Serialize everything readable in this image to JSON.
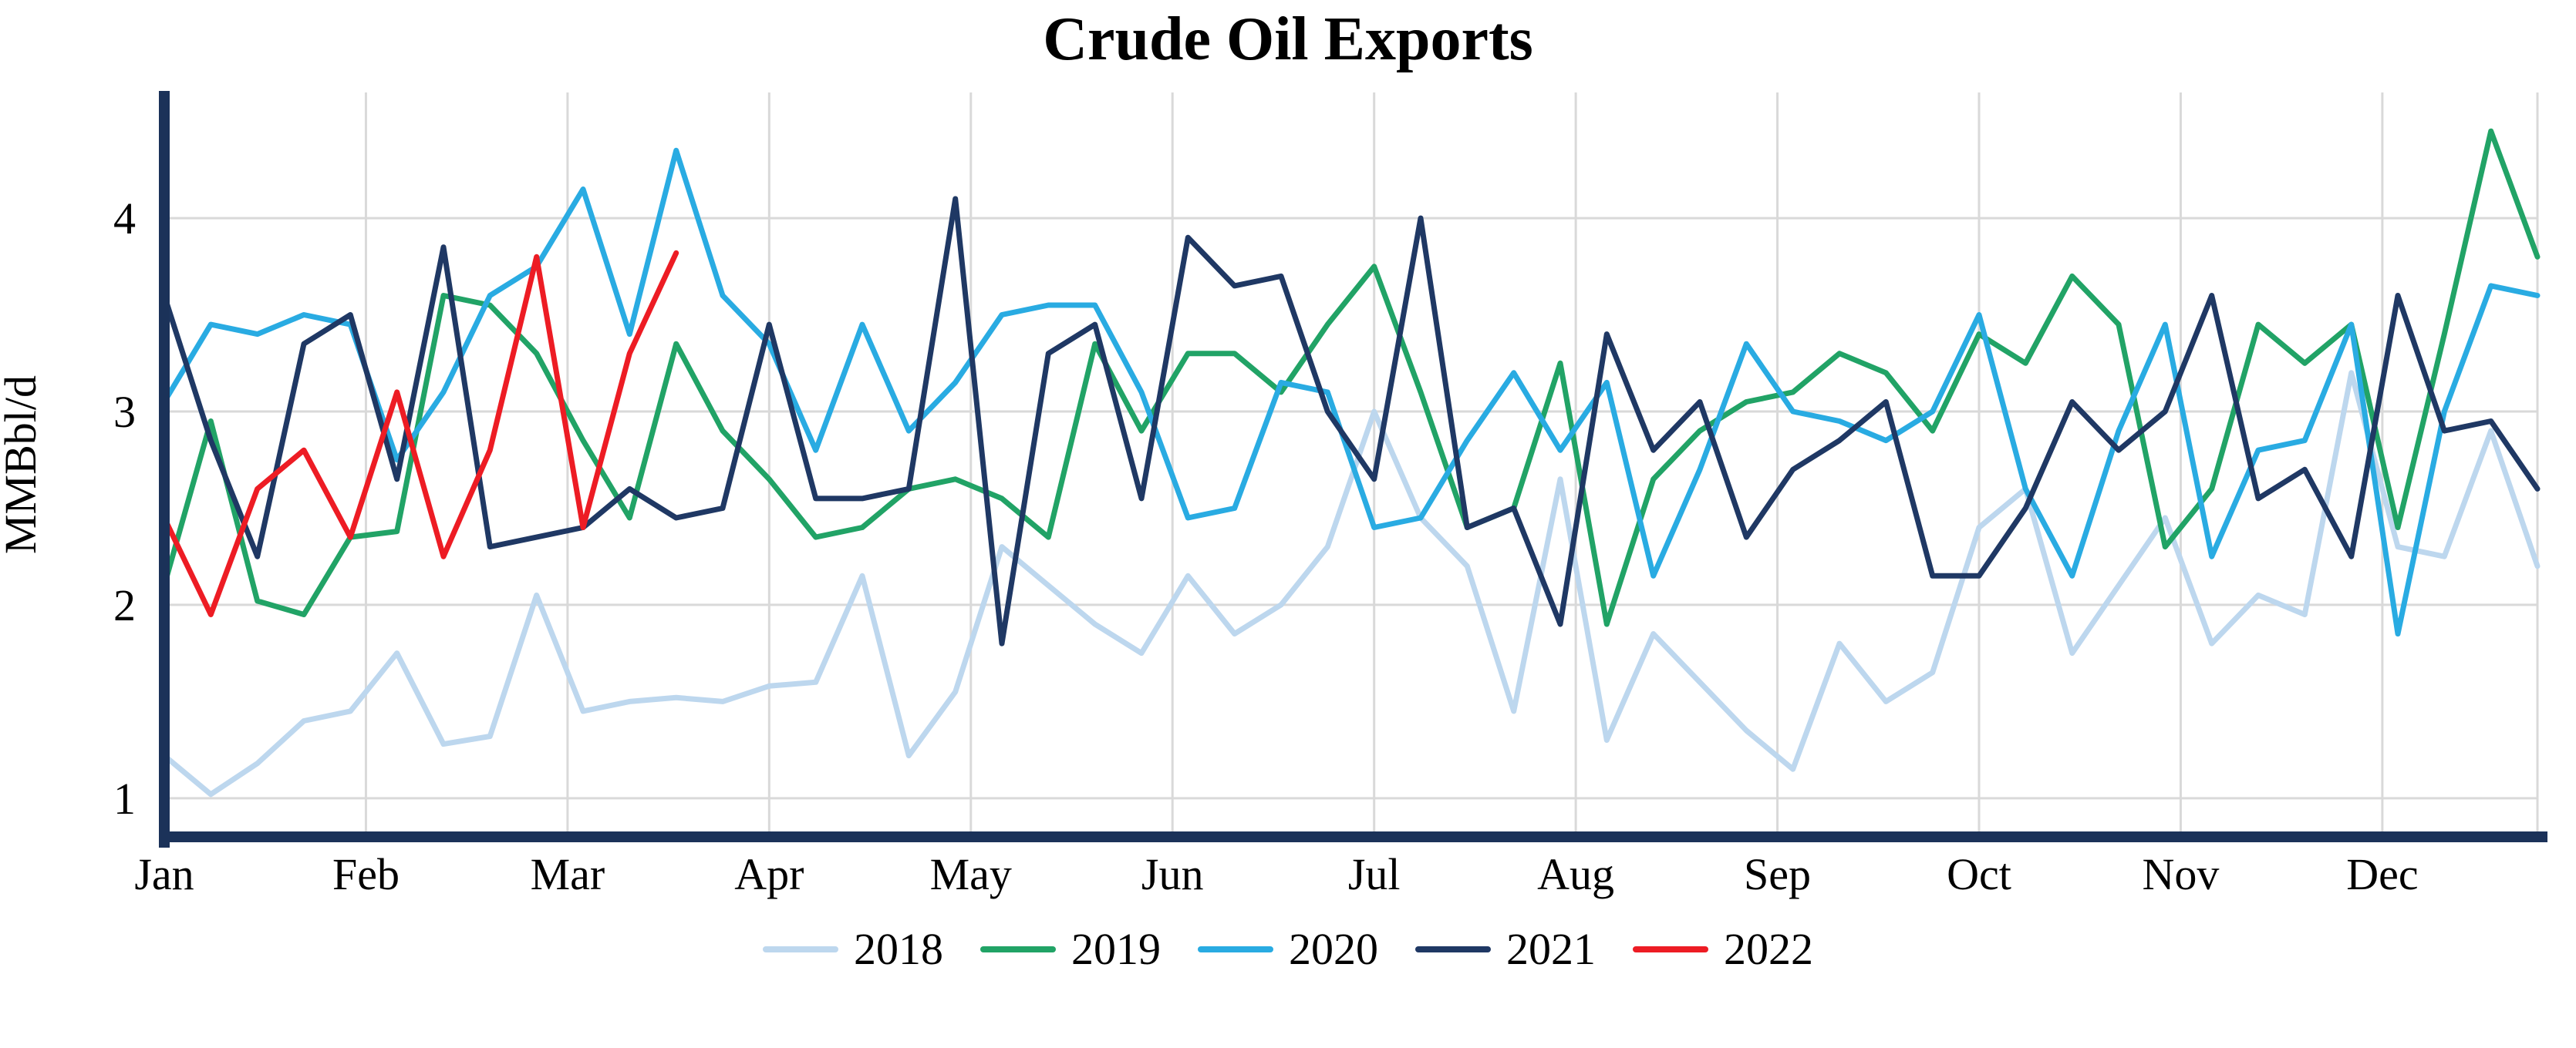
{
  "chart_data": {
    "type": "line",
    "title": "Crude Oil Exports",
    "xlabel": "",
    "ylabel": "MMBbl/d",
    "x_tick_labels": [
      "Jan",
      "Feb",
      "Mar",
      "Apr",
      "May",
      "Jun",
      "Jul",
      "Aug",
      "Sep",
      "Oct",
      "Nov",
      "Dec"
    ],
    "y_ticks": [
      1,
      2,
      3,
      4
    ],
    "ylim": [
      0.8,
      4.65
    ],
    "grid": true,
    "legend_position": "bottom",
    "x_unit": "weekly observations across one year",
    "series": [
      {
        "name": "2018",
        "color": "#BDD7EE",
        "values": [
          1.22,
          1.02,
          1.18,
          1.4,
          1.45,
          1.75,
          1.28,
          1.32,
          2.05,
          1.45,
          1.5,
          1.52,
          1.5,
          1.58,
          1.6,
          2.15,
          1.22,
          1.55,
          2.3,
          2.1,
          1.9,
          1.75,
          2.15,
          1.85,
          2.0,
          2.3,
          3.0,
          2.45,
          2.2,
          1.45,
          2.65,
          1.3,
          1.85,
          1.6,
          1.35,
          1.15,
          1.8,
          1.5,
          1.65,
          2.4,
          2.6,
          1.75,
          2.1,
          2.45,
          1.8,
          2.05,
          1.95,
          3.2,
          2.3,
          2.25,
          2.9,
          2.2
        ]
      },
      {
        "name": "2019",
        "color": "#21A366",
        "values": [
          2.1,
          2.95,
          2.02,
          1.95,
          2.35,
          2.38,
          3.6,
          3.55,
          3.3,
          2.85,
          2.45,
          3.35,
          2.9,
          2.65,
          2.35,
          2.4,
          2.6,
          2.65,
          2.55,
          2.35,
          3.35,
          2.9,
          3.3,
          3.3,
          3.1,
          3.45,
          3.75,
          3.1,
          2.4,
          2.5,
          3.25,
          1.9,
          2.65,
          2.9,
          3.05,
          3.1,
          3.3,
          3.2,
          2.9,
          3.4,
          3.25,
          3.7,
          3.45,
          2.3,
          2.6,
          3.45,
          3.25,
          3.45,
          2.4,
          3.4,
          4.45,
          3.8
        ]
      },
      {
        "name": "2020",
        "color": "#29ABE2",
        "values": [
          3.05,
          3.45,
          3.4,
          3.5,
          3.45,
          2.75,
          3.1,
          3.6,
          3.75,
          4.15,
          3.4,
          4.35,
          3.6,
          3.35,
          2.8,
          3.45,
          2.9,
          3.15,
          3.5,
          3.55,
          3.55,
          3.1,
          2.45,
          2.5,
          3.15,
          3.1,
          2.4,
          2.45,
          2.85,
          3.2,
          2.8,
          3.15,
          2.15,
          2.7,
          3.35,
          3.0,
          2.95,
          2.85,
          3.0,
          3.5,
          2.6,
          2.15,
          2.9,
          3.45,
          2.25,
          2.8,
          2.85,
          3.45,
          1.85,
          3.0,
          3.65,
          3.6
        ]
      },
      {
        "name": "2021",
        "color": "#1F3864",
        "values": [
          3.6,
          2.85,
          2.25,
          3.35,
          3.5,
          2.65,
          3.85,
          2.3,
          2.35,
          2.4,
          2.6,
          2.45,
          2.5,
          3.45,
          2.55,
          2.55,
          2.6,
          4.1,
          1.8,
          3.3,
          3.45,
          2.55,
          3.9,
          3.65,
          3.7,
          3.0,
          2.65,
          4.0,
          2.4,
          2.5,
          1.9,
          3.4,
          2.8,
          3.05,
          2.35,
          2.7,
          2.85,
          3.05,
          2.15,
          2.15,
          2.5,
          3.05,
          2.8,
          3.0,
          3.6,
          2.55,
          2.7,
          2.25,
          3.6,
          2.9,
          2.95,
          2.6
        ]
      },
      {
        "name": "2022",
        "color": "#ED1C24",
        "values": [
          2.45,
          1.95,
          2.6,
          2.8,
          2.35,
          3.1,
          2.25,
          2.8,
          3.8,
          2.4,
          3.3,
          3.82
        ]
      }
    ]
  },
  "style": {
    "axis_color": "#1B3259",
    "grid_color": "#D9D9D9",
    "background": "#FFFFFF",
    "text_color": "#000000"
  }
}
